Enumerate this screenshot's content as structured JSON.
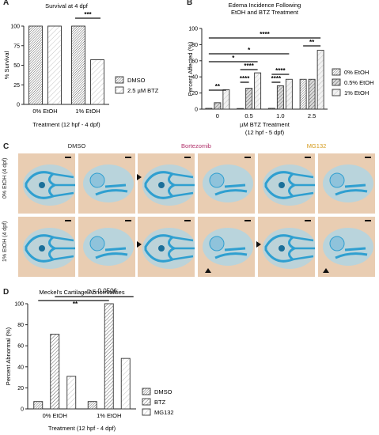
{
  "panels": {
    "a": "A",
    "b": "B",
    "c": "C",
    "d": "D"
  },
  "chart_data": [
    {
      "type": "bar",
      "title": "Survival at 4 dpf",
      "ylabel": "% Survival",
      "xlabel": "Treatment (12 hpf - 4 dpf)",
      "categories": [
        "0% EtOH",
        "1% EtOH"
      ],
      "ylim": [
        0,
        100
      ],
      "yticks": [
        "0",
        "25",
        "50",
        "75",
        "100"
      ],
      "series": [
        {
          "name": "DMSO",
          "values": [
            100,
            100
          ],
          "fill": "#ffffff",
          "hatch": "dense"
        },
        {
          "name": "2.5 µM BTZ",
          "values": [
            100,
            57
          ],
          "fill": "#ffffff",
          "hatch": "light"
        }
      ],
      "significance": [
        {
          "label": "***",
          "category": 1
        }
      ],
      "legend": "right"
    },
    {
      "type": "bar",
      "title": "Edema Incidence Following",
      "subtitle": "EtOH and BTZ Treatment",
      "ylabel": "Percent Affected (%)",
      "xlabel": "µM BTZ Treatment",
      "xlabel2": "(12 hpf - 5 dpf)",
      "categories": [
        "0",
        "0.5",
        "1.0",
        "2.5"
      ],
      "ylim": [
        0,
        100
      ],
      "yticks": [
        "0",
        "20",
        "40",
        "60",
        "80",
        "100"
      ],
      "series": [
        {
          "name": "0% EtOH",
          "values": [
            1,
            0,
            1,
            37
          ],
          "fill": "#ffffff",
          "hatch": "dense"
        },
        {
          "name": "0.5% EtOH",
          "values": [
            8,
            26,
            29,
            37
          ],
          "fill": "#d9d9d9",
          "hatch": "medium"
        },
        {
          "name": "1% EtOH",
          "values": [
            24,
            45,
            37,
            73
          ],
          "fill": "#f2f2f2",
          "hatch": "light"
        }
      ],
      "significance": [
        {
          "label": "**",
          "level": 1
        },
        {
          "label": "****",
          "level": 2
        },
        {
          "label": "****",
          "level": 3
        },
        {
          "label": "*",
          "level": 4
        },
        {
          "label": "*",
          "level": 5
        },
        {
          "label": "****",
          "level": 6
        },
        {
          "label": "****",
          "level": 7
        },
        {
          "label": "****",
          "level": 8
        },
        {
          "label": "**",
          "level": 9
        }
      ],
      "legend": "right"
    },
    {
      "type": "bar",
      "title": "Meckel's Cartilage Abnormalities",
      "ylabel": "Percent Abnormal (%)",
      "xlabel": "Treatment (12 hpf - 4 dpf)",
      "categories": [
        "0% EtOH",
        "1% EtOH"
      ],
      "ylim": [
        0,
        100
      ],
      "yticks": [
        "0",
        "20",
        "40",
        "60",
        "80",
        "100"
      ],
      "series": [
        {
          "name": "DMSO",
          "values": [
            7,
            7
          ],
          "fill": "#ffffff",
          "hatch": "dense"
        },
        {
          "name": "BTZ",
          "values": [
            71,
            100
          ],
          "fill": "#ffffff",
          "hatch": "medium"
        },
        {
          "name": "MG132",
          "values": [
            31,
            48
          ],
          "fill": "#ffffff",
          "hatch": "light"
        }
      ],
      "significance": [
        {
          "label": "**"
        },
        {
          "label": "p = 0.0506"
        }
      ],
      "legend": "right"
    }
  ],
  "micrographs": {
    "columns": [
      {
        "label": "DMSO",
        "color": "#222222"
      },
      {
        "label": "Bortezomib",
        "color": "#b0306a"
      },
      {
        "label": "MG132",
        "color": "#d49a1a"
      }
    ],
    "rows": [
      {
        "label": "0% EtOH\n(4 dpf)"
      },
      {
        "label": "1% EtOH\n(4 dpf)"
      }
    ],
    "stain_colors": {
      "background": "#e9cdb2",
      "cartilage": "#2f9fd0",
      "tissue": "#a8d6ea"
    }
  }
}
